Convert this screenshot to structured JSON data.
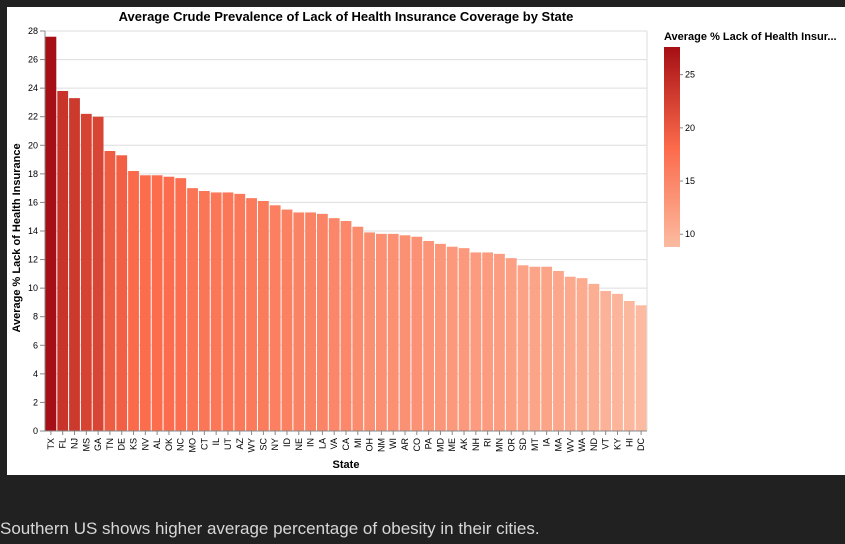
{
  "caption": "Southern US shows higher average percentage of obesity in their cities.",
  "chart_data": {
    "type": "bar",
    "title": "Average Crude Prevalence of Lack of Health Insurance Coverage by State",
    "xlabel": "State",
    "ylabel": "Average % Lack of Health Insurance",
    "ylim": [
      0,
      28
    ],
    "yticks": [
      0,
      2,
      4,
      6,
      8,
      10,
      12,
      14,
      16,
      18,
      20,
      22,
      24,
      26,
      28
    ],
    "grid": true,
    "legend": {
      "title": "Average % Lack of Health Insur...",
      "placement": "right",
      "ticks": [
        10,
        15,
        20,
        25
      ],
      "domain": [
        8.8,
        27.6
      ],
      "color_low": "#fcbba1",
      "color_mid": "#fb6a4a",
      "color_high": "#a50f15"
    },
    "categories": [
      "TX",
      "FL",
      "NJ",
      "MS",
      "GA",
      "TN",
      "DE",
      "KS",
      "NV",
      "AL",
      "OK",
      "NC",
      "MO",
      "CT",
      "IL",
      "UT",
      "AZ",
      "WY",
      "SC",
      "NY",
      "ID",
      "NE",
      "IN",
      "LA",
      "VA",
      "CA",
      "MI",
      "OH",
      "NM",
      "WI",
      "AR",
      "CO",
      "PA",
      "MD",
      "ME",
      "AK",
      "NH",
      "RI",
      "MN",
      "OR",
      "SD",
      "MT",
      "IA",
      "MA",
      "WV",
      "WA",
      "ND",
      "VT",
      "KY",
      "HI",
      "DC"
    ],
    "values": [
      27.6,
      23.8,
      23.3,
      22.2,
      22.0,
      19.6,
      19.3,
      18.2,
      17.9,
      17.9,
      17.8,
      17.7,
      17.0,
      16.8,
      16.7,
      16.7,
      16.6,
      16.3,
      16.1,
      15.8,
      15.5,
      15.3,
      15.3,
      15.2,
      14.9,
      14.7,
      14.3,
      13.9,
      13.8,
      13.8,
      13.7,
      13.6,
      13.3,
      13.1,
      12.9,
      12.8,
      12.5,
      12.5,
      12.4,
      12.1,
      11.6,
      11.5,
      11.5,
      11.2,
      10.8,
      10.7,
      10.3,
      9.8,
      9.6,
      9.1,
      8.8
    ]
  }
}
